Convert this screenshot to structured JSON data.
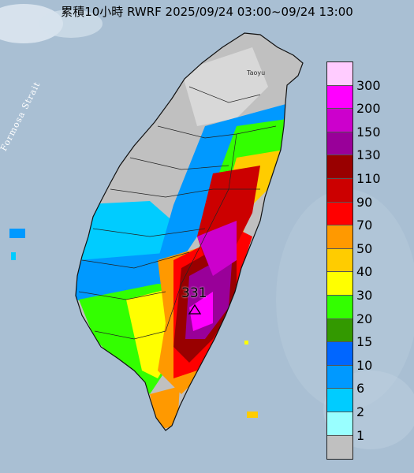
{
  "title": "累積10小時 RWRF 2025/09/24 03:00~09/24 13:00",
  "map_label": "Formosa Strait",
  "max_value_label": "331",
  "city_label": "Taoyu",
  "legend": [
    {
      "label": "300",
      "color": "#ffccff"
    },
    {
      "label": "200",
      "color": "#ff00ff"
    },
    {
      "label": "150",
      "color": "#cc00cc"
    },
    {
      "label": "130",
      "color": "#990099"
    },
    {
      "label": "110",
      "color": "#990000"
    },
    {
      "label": "90",
      "color": "#cc0000"
    },
    {
      "label": "70",
      "color": "#ff0000"
    },
    {
      "label": "50",
      "color": "#ff9900"
    },
    {
      "label": "40",
      "color": "#ffcc00"
    },
    {
      "label": "30",
      "color": "#ffff00"
    },
    {
      "label": "20",
      "color": "#33ff00"
    },
    {
      "label": "15",
      "color": "#339900"
    },
    {
      "label": "10",
      "color": "#0066ff"
    },
    {
      "label": "6",
      "color": "#0099ff"
    },
    {
      "label": "2",
      "color": "#00ccff"
    },
    {
      "label": "1",
      "color": "#99ffff"
    },
    {
      "label": "",
      "color": "#c0c0c0"
    }
  ]
}
